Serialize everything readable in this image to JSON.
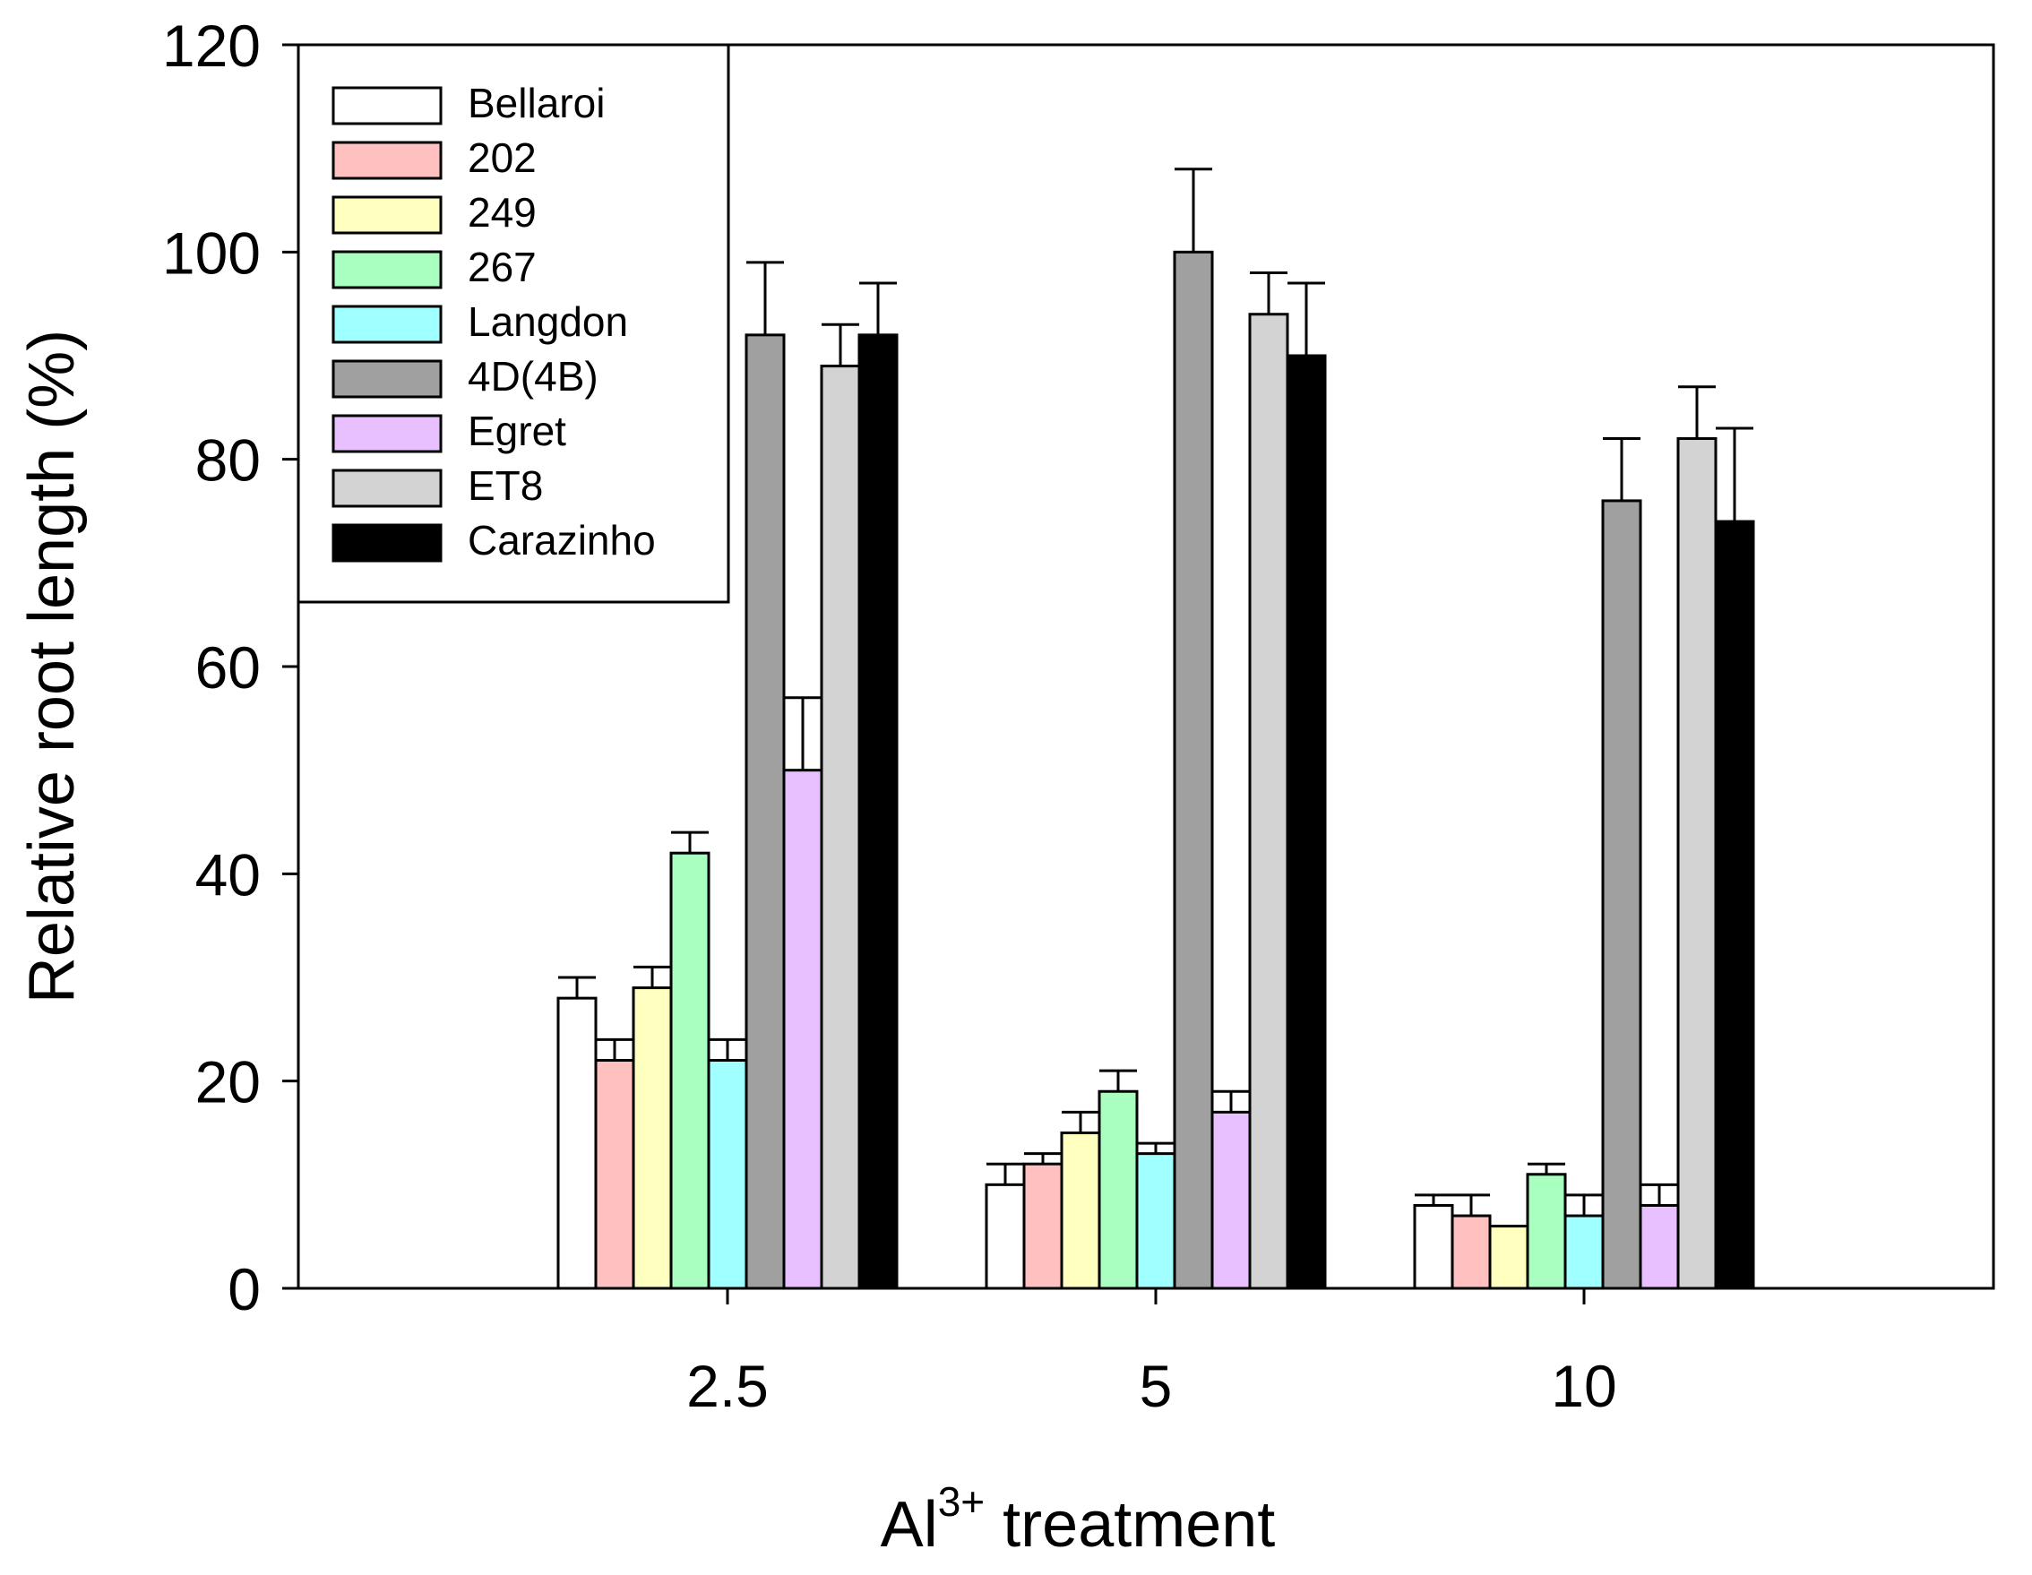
{
  "chart_data": {
    "type": "bar",
    "title": "",
    "xlabel": "treatment",
    "xlabel_prefix": "Al",
    "xlabel_superscript": "3+",
    "ylabel": "Relative root length (%)",
    "ylim": [
      0,
      120
    ],
    "yticks": [
      "0",
      "20",
      "40",
      "60",
      "80",
      "100",
      "120"
    ],
    "categories": [
      "2.5",
      "5",
      "10"
    ],
    "legend_position": "top-left",
    "grid": false,
    "series": [
      {
        "name": "Bellaroi",
        "color": "#ffffff",
        "values": [
          28,
          10,
          8
        ],
        "errors": [
          2,
          2,
          1
        ]
      },
      {
        "name": "202",
        "color": "#ffc0c0",
        "values": [
          22,
          12,
          7
        ],
        "errors": [
          2,
          1,
          2
        ]
      },
      {
        "name": "249",
        "color": "#ffffc0",
        "values": [
          29,
          15,
          6
        ],
        "errors": [
          2,
          2,
          0
        ]
      },
      {
        "name": "267",
        "color": "#a8ffc0",
        "values": [
          42,
          19,
          11
        ],
        "errors": [
          2,
          2,
          1
        ]
      },
      {
        "name": "Langdon",
        "color": "#a0ffff",
        "values": [
          22,
          13,
          7
        ],
        "errors": [
          2,
          1,
          2
        ]
      },
      {
        "name": "4D(4B)",
        "color": "#a0a0a0",
        "values": [
          92,
          100,
          76
        ],
        "errors": [
          7,
          8,
          6
        ]
      },
      {
        "name": "Egret",
        "color": "#e8c0ff",
        "values": [
          50,
          17,
          8
        ],
        "errors": [
          7,
          2,
          2
        ]
      },
      {
        "name": "ET8",
        "color": "#d3d3d3",
        "values": [
          89,
          94,
          82
        ],
        "errors": [
          4,
          4,
          5
        ]
      },
      {
        "name": "Carazinho",
        "color": "#000000",
        "values": [
          92,
          90,
          74
        ],
        "errors": [
          5,
          7,
          9
        ]
      }
    ]
  }
}
